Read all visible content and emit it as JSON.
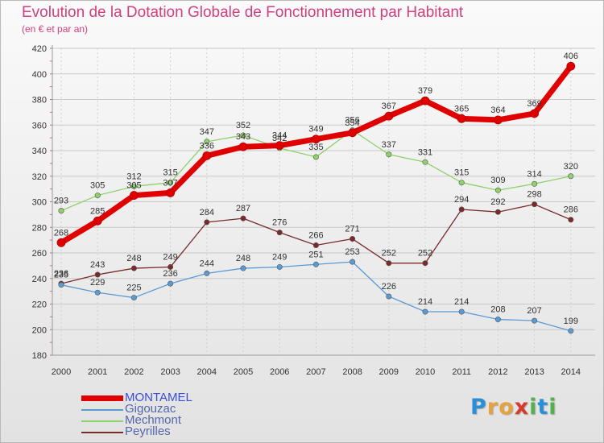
{
  "title": "Evolution de la Dotation Globale de Fonctionnement par Habitant",
  "subtitle": "(en € et par an)",
  "logo": {
    "text": "Proxiti",
    "letters": [
      "P",
      "r",
      "o",
      "x",
      "i",
      "t",
      "i"
    ],
    "colors": [
      "#2a8fd6",
      "#e8a23c",
      "#e8a23c",
      "#d63a2a",
      "#54b04a",
      "#2a8fd6",
      "#54b04a"
    ]
  },
  "chart_data": {
    "type": "line",
    "title": "Evolution de la Dotation Globale de Fonctionnement par Habitant",
    "subtitle": "(en € et par an)",
    "x": [
      "2000",
      "2001",
      "2002",
      "2003",
      "2004",
      "2005",
      "2006",
      "2007",
      "2008",
      "2009",
      "2010",
      "2011",
      "2012",
      "2013",
      "2014"
    ],
    "ylim": [
      180,
      420
    ],
    "yticks": [
      180,
      200,
      220,
      240,
      260,
      280,
      300,
      320,
      340,
      360,
      380,
      400,
      420
    ],
    "grid": true,
    "legend_position": "bottom-left",
    "series": [
      {
        "name": "MONTAMEL",
        "color": "#e00000",
        "values": [
          268,
          285,
          305,
          307,
          336,
          343,
          344,
          349,
          354,
          367,
          379,
          365,
          364,
          369,
          406
        ],
        "labels": [
          "268",
          "285",
          "305",
          "307",
          "336",
          "343",
          "344",
          "349",
          "354",
          "367",
          "379",
          "365",
          "364",
          "369",
          "406"
        ]
      },
      {
        "name": "Gigouzac",
        "color": "#5b9bd5",
        "values": [
          235,
          229,
          225,
          236,
          244,
          248,
          249,
          251,
          253,
          226,
          214,
          214,
          208,
          207,
          199
        ],
        "labels": [
          "235",
          "229",
          "225",
          "236",
          "244",
          "248",
          "249",
          "251",
          "253",
          "226",
          "214",
          "214",
          "208",
          "207",
          "199"
        ]
      },
      {
        "name": "Mechmont",
        "color": "#8fd16a",
        "values": [
          293,
          305,
          312,
          315,
          347,
          352,
          342,
          335,
          356,
          337,
          331,
          315,
          309,
          314,
          320
        ],
        "labels": [
          "293",
          "305",
          "312",
          "315",
          "347",
          "352",
          "342",
          "335",
          "356",
          "337",
          "331",
          "315",
          "309",
          "314",
          "320"
        ]
      },
      {
        "name": "Peyrilles",
        "color": "#7a2a2a",
        "values": [
          236,
          243,
          248,
          249,
          284,
          287,
          276,
          266,
          271,
          252,
          252,
          294,
          292,
          298,
          286
        ],
        "labels": [
          "236",
          "243",
          "248",
          "249",
          "284",
          "287",
          "276",
          "266",
          "271",
          "252",
          "252",
          "294",
          "292",
          "298",
          "286"
        ]
      }
    ]
  }
}
